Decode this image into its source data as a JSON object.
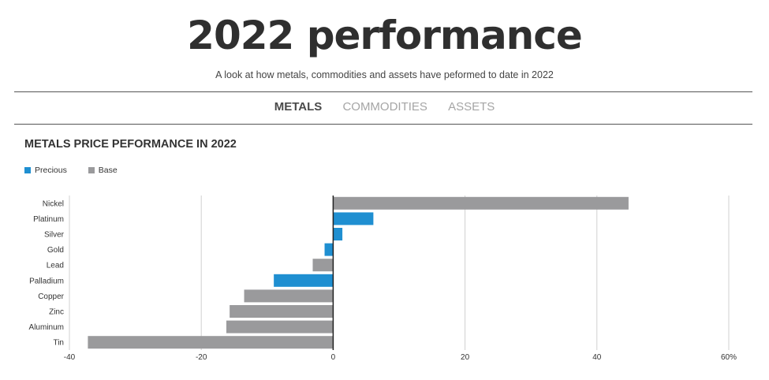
{
  "header": {
    "title": "2022 performance",
    "subtitle": "A look at how metals, commodities and assets have peformed to date in 2022"
  },
  "tabs": [
    {
      "label": "METALS",
      "active": true
    },
    {
      "label": "COMMODITIES",
      "active": false
    },
    {
      "label": "ASSETS",
      "active": false
    }
  ],
  "colors": {
    "precious": "#1f8fd1",
    "base": "#9a9a9c",
    "grid": "#d0d0d0",
    "zero_line": "#222222"
  },
  "chart_data": {
    "type": "bar",
    "orientation": "horizontal",
    "title": "METALS PRICE PEFORMANCE IN 2022",
    "legend": [
      {
        "name": "Precious",
        "color": "#1f8fd1"
      },
      {
        "name": "Base",
        "color": "#9a9a9c"
      }
    ],
    "legend_position": "top-left",
    "categories": [
      "Nickel",
      "Platinum",
      "Silver",
      "Gold",
      "Lead",
      "Palladium",
      "Copper",
      "Zinc",
      "Aluminum",
      "Tin"
    ],
    "values": [
      44.8,
      6.1,
      1.4,
      -1.3,
      -3.1,
      -9.0,
      -13.5,
      -15.7,
      -16.2,
      -37.2
    ],
    "groups": [
      "Base",
      "Precious",
      "Precious",
      "Precious",
      "Base",
      "Precious",
      "Base",
      "Base",
      "Base",
      "Base"
    ],
    "xlim": [
      -40,
      60
    ],
    "xticks": [
      -40,
      -20,
      0,
      20,
      40,
      60
    ],
    "xtick_labels": [
      "-40",
      "-20",
      "0",
      "20",
      "40",
      "60%"
    ],
    "grid": true
  }
}
